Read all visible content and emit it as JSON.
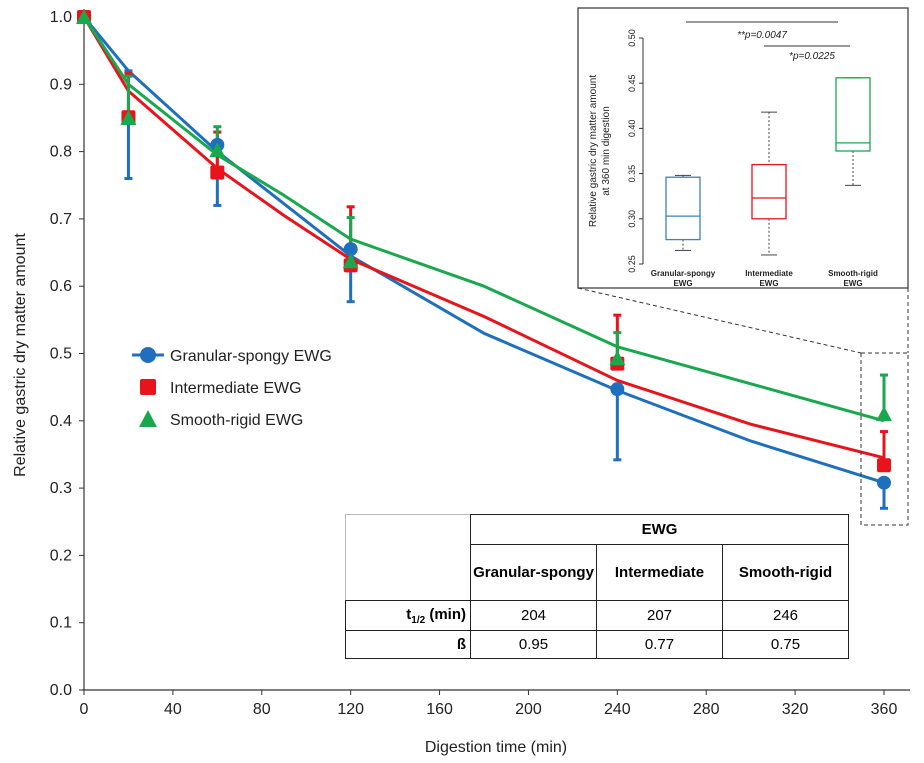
{
  "chart_data": {
    "type": "line",
    "xlabel": "Digestion time (min)",
    "ylabel": "Relative gastric dry matter amount",
    "xlim": [
      0,
      370
    ],
    "ylim": [
      0,
      1.0
    ],
    "xticks": [
      0,
      40,
      80,
      120,
      160,
      200,
      240,
      280,
      320,
      360
    ],
    "yticks": [
      "0.0",
      "0.1",
      "0.2",
      "0.3",
      "0.4",
      "0.5",
      "0.6",
      "0.7",
      "0.8",
      "0.9",
      "1.0"
    ],
    "legend": "left-middle",
    "series": [
      {
        "name": "Granular-spongy EWG",
        "color": "#1f6fbf",
        "marker": "circle",
        "x": [
          0,
          20,
          60,
          120,
          240,
          360
        ],
        "y": [
          1.0,
          0.85,
          0.81,
          0.655,
          0.447,
          0.308
        ],
        "err_low": [
          0,
          0.09,
          0.09,
          0.078,
          0.105,
          0.038
        ],
        "err_high": [
          0,
          0.07,
          0.0,
          0.0,
          0.0,
          0.0
        ],
        "fit_x": [
          0,
          20,
          60,
          120,
          180,
          240,
          300,
          360
        ],
        "fit_y": [
          1.0,
          0.92,
          0.8,
          0.645,
          0.53,
          0.445,
          0.37,
          0.308
        ]
      },
      {
        "name": "Intermediate EWG",
        "color": "#e8141b",
        "marker": "square",
        "x": [
          0,
          20,
          60,
          120,
          240,
          360
        ],
        "y": [
          1.0,
          0.851,
          0.769,
          0.631,
          0.485,
          0.334
        ],
        "err_low": [
          0,
          0,
          0,
          0,
          0,
          0
        ],
        "err_high": [
          0,
          0.065,
          0.06,
          0.087,
          0.072,
          0.05
        ],
        "fit_x": [
          0,
          20,
          60,
          90,
          120,
          180,
          240,
          300,
          360
        ],
        "fit_y": [
          1.0,
          0.89,
          0.775,
          0.705,
          0.64,
          0.555,
          0.46,
          0.395,
          0.345
        ]
      },
      {
        "name": "Smooth-rigid EWG",
        "color": "#19a84d",
        "marker": "triangle",
        "x": [
          0,
          20,
          60,
          120,
          240,
          360
        ],
        "y": [
          1.0,
          0.85,
          0.802,
          0.637,
          0.493,
          0.41
        ],
        "err_low": [
          0,
          0,
          0,
          0,
          0,
          0
        ],
        "err_high": [
          0,
          0.062,
          0.035,
          0.065,
          0.038,
          0.058
        ],
        "fit_x": [
          0,
          20,
          60,
          90,
          120,
          180,
          240,
          300,
          360
        ],
        "fit_y": [
          1.0,
          0.9,
          0.795,
          0.735,
          0.67,
          0.6,
          0.51,
          0.455,
          0.4
        ]
      }
    ],
    "inset": {
      "type": "box",
      "ylabel_line1": "Relative gastric dry matter amount",
      "ylabel_line2": "at 360 min digestion",
      "ylim": [
        0.25,
        0.5
      ],
      "yticks": [
        "0.25",
        "0.30",
        "0.35",
        "0.40",
        "0.45",
        "0.50"
      ],
      "categories": [
        {
          "line1": "Granular-spongy",
          "line2": "EWG"
        },
        {
          "line1": "Intermediate",
          "line2": "EWG"
        },
        {
          "line1": "Smooth-rigid",
          "line2": "EWG"
        }
      ],
      "boxes": [
        {
          "min": 0.265,
          "q1": 0.277,
          "median": 0.303,
          "q3": 0.346,
          "max": 0.348,
          "color": "#3b7fc4"
        },
        {
          "min": 0.26,
          "q1": 0.3,
          "median": 0.323,
          "q3": 0.36,
          "max": 0.418,
          "color": "#e8141b"
        },
        {
          "min": 0.337,
          "q1": 0.375,
          "median": 0.384,
          "q3": 0.456,
          "max": 0.456,
          "color": "#19a84d"
        }
      ],
      "sig_long": "**p=0.0047",
      "sig_short": "*p=0.0225"
    }
  },
  "table": {
    "group_header": "EWG",
    "col_headers": [
      "Granular-spongy",
      "Intermediate",
      "Smooth-rigid"
    ],
    "rows": [
      {
        "label_main": "t",
        "label_sub": "1/2",
        "label_tail": " (min)",
        "values": [
          "204",
          "207",
          "246"
        ]
      },
      {
        "label_main": "ß",
        "values": [
          "0.95",
          "0.77",
          "0.75"
        ]
      }
    ]
  }
}
